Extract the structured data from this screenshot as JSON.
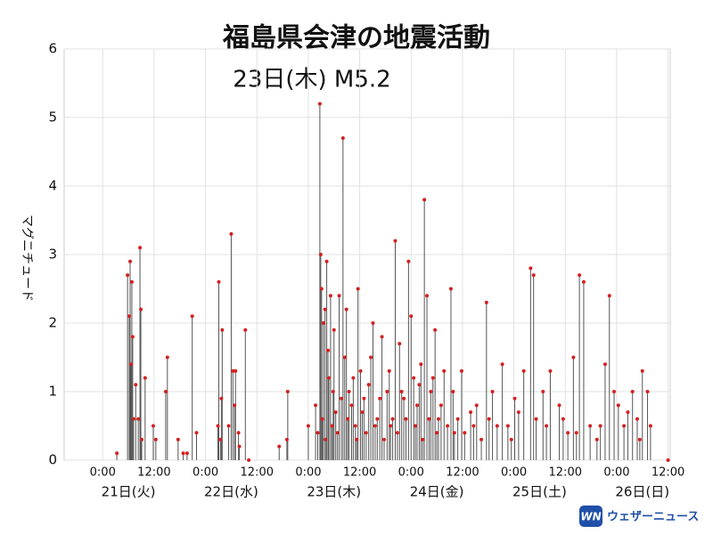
{
  "chart_data": {
    "type": "stem",
    "title": "福島県会津の地震活動",
    "subtitle": "23日(木) M5.2",
    "ylabel": "マグニチュード",
    "brand": {
      "icon": "WN",
      "name": "ウェザーニュース"
    },
    "color": "#d42020",
    "stem_color": "#555555",
    "grid": true,
    "xlim": [
      -9,
      132.5
    ],
    "ylim": [
      0,
      6
    ],
    "yticks": [
      0,
      1,
      2,
      3,
      4,
      5,
      6
    ],
    "xticks": [
      {
        "value": 0,
        "label": "0:00"
      },
      {
        "value": 12,
        "label": "12:00"
      },
      {
        "value": 24,
        "label": "0:00"
      },
      {
        "value": 36,
        "label": "12:00"
      },
      {
        "value": 48,
        "label": "0:00"
      },
      {
        "value": 60,
        "label": "12:00"
      },
      {
        "value": 72,
        "label": "0:00"
      },
      {
        "value": 84,
        "label": "12:00"
      },
      {
        "value": 96,
        "label": "0:00"
      },
      {
        "value": 108,
        "label": "12:00"
      },
      {
        "value": 120,
        "label": "0:00"
      },
      {
        "value": 132,
        "label": "12:00"
      }
    ],
    "day_labels": [
      {
        "value": 6,
        "label": "21日(火)"
      },
      {
        "value": 30,
        "label": "22日(水)"
      },
      {
        "value": 54,
        "label": "23日(木)"
      },
      {
        "value": 78,
        "label": "24日(金)"
      },
      {
        "value": 102,
        "label": "25日(土)"
      },
      {
        "value": 126,
        "label": "26日(日)"
      }
    ],
    "x": [
      3.3,
      5.8,
      6.2,
      6.4,
      6.6,
      6.8,
      7.0,
      7.2,
      7.7,
      8.3,
      8.7,
      8.9,
      9.1,
      9.9,
      11.8,
      12.4,
      14.7,
      15.1,
      17.6,
      18.8,
      19.7,
      20.9,
      21.9,
      26.9,
      27.1,
      27.5,
      27.7,
      27.9,
      29.4,
      30.0,
      30.4,
      30.8,
      31.0,
      31.7,
      31.9,
      33.3,
      34.1,
      41.2,
      43.0,
      43.2,
      48.0,
      49.7,
      50.7,
      50.9,
      51.1,
      51.5,
      51.9,
      52.3,
      52.8,
      53.2,
      53.8,
      54.4,
      55.2,
      56.1,
      56.5,
      56.9,
      57.5,
      58.1,
      59.0,
      59.6,
      60.2,
      61.0,
      62.1,
      63.1,
      64.1,
      65.2,
      66.4,
      67.2,
      68.3,
      69.3,
      70.3,
      71.4,
      72.0,
      72.6,
      73.4,
      74.3,
      75.1,
      75.7,
      76.6,
      77.6,
      78.4,
      79.7,
      81.3,
      82.1,
      83.8,
      85.9,
      87.3,
      89.6,
      91.0,
      92.1,
      93.3,
      94.6,
      96.2,
      98.3,
      99.9,
      100.6,
      101.2,
      102.8,
      104.5,
      106.6,
      108.6,
      109.9,
      111.3,
      112.3,
      113.8,
      115.4,
      117.3,
      118.3,
      119.4,
      120.4,
      121.7,
      123.7,
      124.8,
      126.0,
      127.2,
      127.9,
      132.0,
      50.2,
      51.3,
      52.0,
      52.6,
      53.5,
      54.0,
      54.8,
      55.7,
      57.2,
      58.5,
      59.3,
      60.6,
      61.5,
      62.6,
      63.6,
      64.7,
      65.7,
      66.9,
      67.7,
      68.8,
      69.8,
      70.8,
      73.0,
      73.9,
      74.7,
      76.2,
      77.1,
      78.0,
      79.0,
      80.5,
      81.8,
      82.9,
      84.5,
      86.6,
      88.4,
      90.2,
      95.4,
      97.1,
      103.6,
      107.5,
      110.6,
      116.2,
      122.6,
      125.4
    ],
    "values": [
      0.1,
      2.7,
      2.1,
      2.9,
      1.4,
      2.6,
      1.8,
      0.6,
      1.1,
      0.6,
      3.1,
      2.2,
      0.3,
      1.2,
      0.5,
      0.3,
      1.0,
      1.5,
      0.3,
      0.1,
      0.1,
      2.1,
      0.4,
      0.5,
      2.6,
      0.3,
      0.9,
      1.9,
      0.5,
      3.3,
      1.3,
      0.8,
      1.3,
      0.4,
      0.2,
      1.9,
      0,
      0.2,
      0.3,
      1.0,
      0.5,
      0.8,
      5.2,
      3.0,
      2.5,
      2.0,
      2.2,
      2.9,
      1.2,
      2.4,
      1.0,
      0.7,
      2.4,
      4.7,
      1.5,
      2.2,
      1.0,
      0.8,
      0.5,
      2.5,
      1.3,
      0.9,
      1.1,
      2.0,
      0.6,
      1.8,
      1.0,
      0.5,
      3.2,
      1.7,
      0.9,
      2.9,
      2.1,
      1.2,
      0.8,
      1.4,
      3.8,
      2.4,
      1.0,
      1.9,
      0.6,
      1.3,
      2.5,
      0.4,
      1.3,
      0.7,
      0.8,
      2.3,
      1.0,
      0.5,
      1.4,
      0.5,
      0.9,
      1.3,
      2.8,
      2.7,
      0.6,
      1.0,
      1.3,
      0.8,
      0.4,
      1.5,
      2.7,
      2.6,
      0.5,
      0.3,
      1.4,
      2.4,
      1.0,
      0.8,
      0.5,
      1.0,
      0.6,
      1.3,
      1.0,
      0.5,
      0,
      0.4,
      0.6,
      0.3,
      1.6,
      0.5,
      1.9,
      0.4,
      0.9,
      0.6,
      1.2,
      0.3,
      0.7,
      0.4,
      1.5,
      0.5,
      0.9,
      0.3,
      1.3,
      0.6,
      0.4,
      1.0,
      0.6,
      0.5,
      1.1,
      0.3,
      0.6,
      1.2,
      0.4,
      0.8,
      0.5,
      1.0,
      0.6,
      0.4,
      0.5,
      0.3,
      0.6,
      0.3,
      0.7,
      0.5,
      0.6,
      0.4,
      0.5,
      0.7,
      0.3
    ]
  }
}
